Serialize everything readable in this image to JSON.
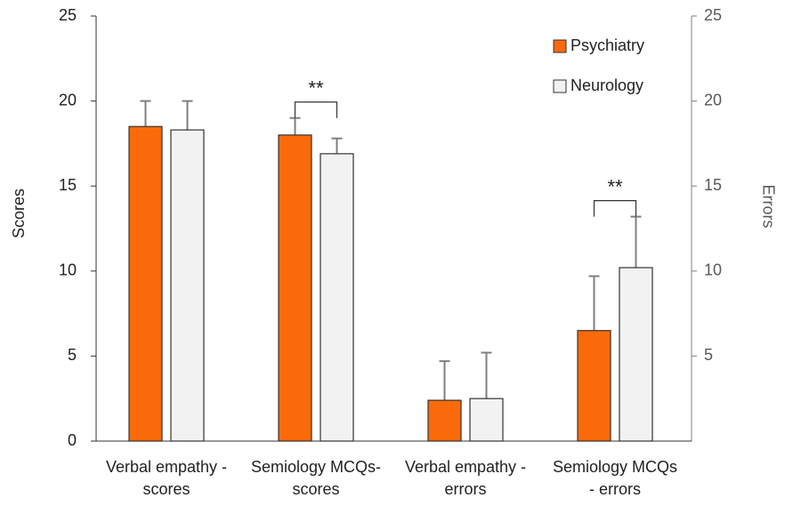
{
  "chart_data": {
    "type": "bar",
    "categories": [
      "Verbal empathy -\nscores",
      "Semiology MCQs-\nscores",
      "Verbal empathy -\nerrors",
      "Semiology MCQs\n- errors"
    ],
    "series": [
      {
        "name": "Psychiatry",
        "color": "#fa6a0a",
        "values": [
          18.5,
          18.0,
          2.4,
          6.5
        ],
        "errors": [
          1.5,
          1.0,
          2.3,
          3.2
        ]
      },
      {
        "name": "Neurology",
        "color": "#f2f2f2",
        "values": [
          18.3,
          16.9,
          2.5,
          10.2
        ],
        "errors": [
          1.7,
          0.9,
          2.7,
          3.0
        ]
      }
    ],
    "ylabel": "Scores",
    "y2label": "Errors",
    "ylim": [
      0,
      25
    ],
    "yticks": [
      0,
      5,
      10,
      15,
      20,
      25
    ],
    "y2lim": [
      0,
      25
    ],
    "y2ticks": [
      5,
      10,
      15,
      20,
      25
    ],
    "annotations": [
      {
        "text": "**",
        "category": 1
      },
      {
        "text": "**",
        "category": 3
      }
    ],
    "legend": "upper right"
  }
}
